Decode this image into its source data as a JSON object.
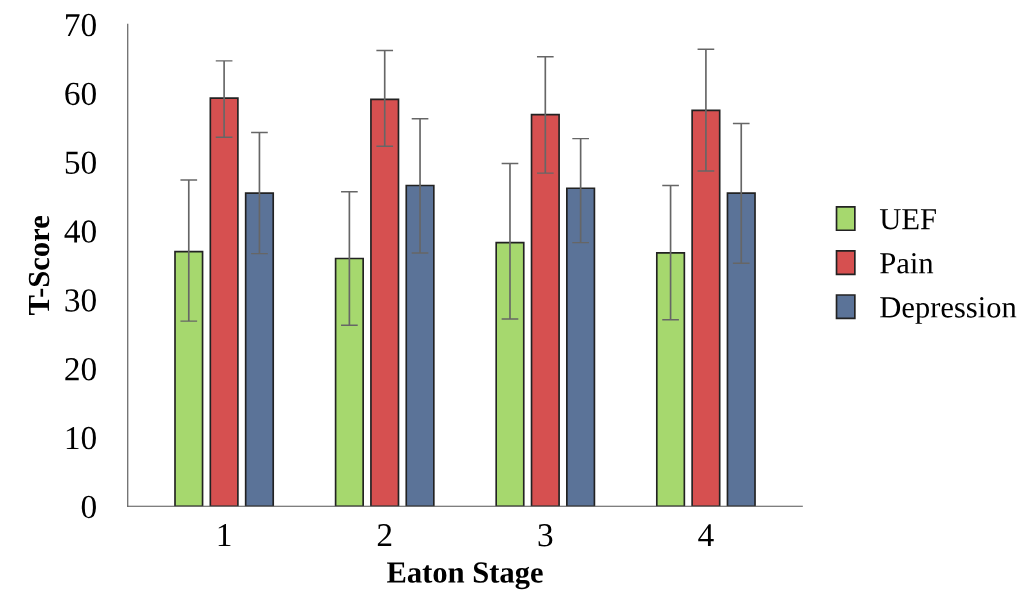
{
  "chart_data": {
    "type": "bar",
    "xlabel": "Eaton Stage",
    "ylabel": "T-Score",
    "categories": [
      "1",
      "2",
      "3",
      "4"
    ],
    "series": [
      {
        "name": "UEF",
        "color": "#a6d86e",
        "values": [
          37.0,
          36.0,
          38.3,
          36.8
        ],
        "errors": [
          [
            26.9,
            47.4
          ],
          [
            26.3,
            45.7
          ],
          [
            27.2,
            49.8
          ],
          [
            27.1,
            46.6
          ]
        ]
      },
      {
        "name": "Pain",
        "color": "#d65050",
        "values": [
          59.3,
          59.1,
          56.9,
          57.5
        ],
        "errors": [
          [
            53.6,
            64.7
          ],
          [
            52.3,
            66.2
          ],
          [
            48.4,
            65.3
          ],
          [
            48.7,
            66.4
          ]
        ]
      },
      {
        "name": "Depression",
        "color": "#5b7398",
        "values": [
          45.5,
          46.6,
          46.2,
          45.5
        ],
        "errors": [
          [
            36.7,
            54.3
          ],
          [
            36.8,
            56.3
          ],
          [
            38.3,
            53.4
          ],
          [
            35.3,
            55.6
          ]
        ]
      }
    ],
    "ylim": [
      0,
      70
    ],
    "yticks": [
      0,
      10,
      20,
      30,
      40,
      50,
      60,
      70
    ],
    "grid": false,
    "legend": "right"
  }
}
